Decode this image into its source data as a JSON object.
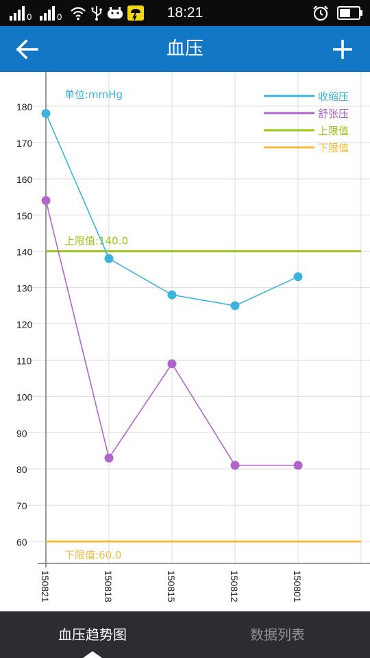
{
  "status_bar": {
    "time": "18:21",
    "sim1_label": "0",
    "sim2_label": "0",
    "icons": [
      "signal-icon",
      "signal-icon",
      "wifi-icon",
      "usb-icon",
      "gamepad-icon",
      "weather-icon",
      "alarm-icon",
      "battery-icon"
    ]
  },
  "app_bar": {
    "title": "血压",
    "back_icon": "arrow-left-icon",
    "add_icon": "plus-icon",
    "background": "#1277c5"
  },
  "tabs": [
    {
      "label": "血压趋势图",
      "active": true
    },
    {
      "label": "数据列表",
      "active": false
    }
  ],
  "chart_data": {
    "type": "line",
    "unit_label": "单位:mmHg",
    "categories": [
      "150821",
      "150818",
      "150815",
      "150812",
      "150801"
    ],
    "y_ticks": [
      60,
      70,
      80,
      90,
      100,
      110,
      120,
      130,
      140,
      150,
      160,
      170,
      180
    ],
    "ylim": [
      55,
      190
    ],
    "grid": true,
    "legend_position": "top-right",
    "series": [
      {
        "name": "收缩压",
        "color": "#3ab4dc",
        "values": [
          178,
          138,
          128,
          125,
          133
        ]
      },
      {
        "name": "舒张压",
        "color": "#b065cd",
        "values": [
          154,
          83,
          109,
          81,
          81
        ]
      }
    ],
    "reference_lines": [
      {
        "name": "上限值",
        "value": 140,
        "label": "上限值:140.0",
        "color": "#9ac61b"
      },
      {
        "name": "下限值",
        "value": 60,
        "label": "下限值:60.0",
        "color": "#f5bc3c"
      }
    ]
  }
}
